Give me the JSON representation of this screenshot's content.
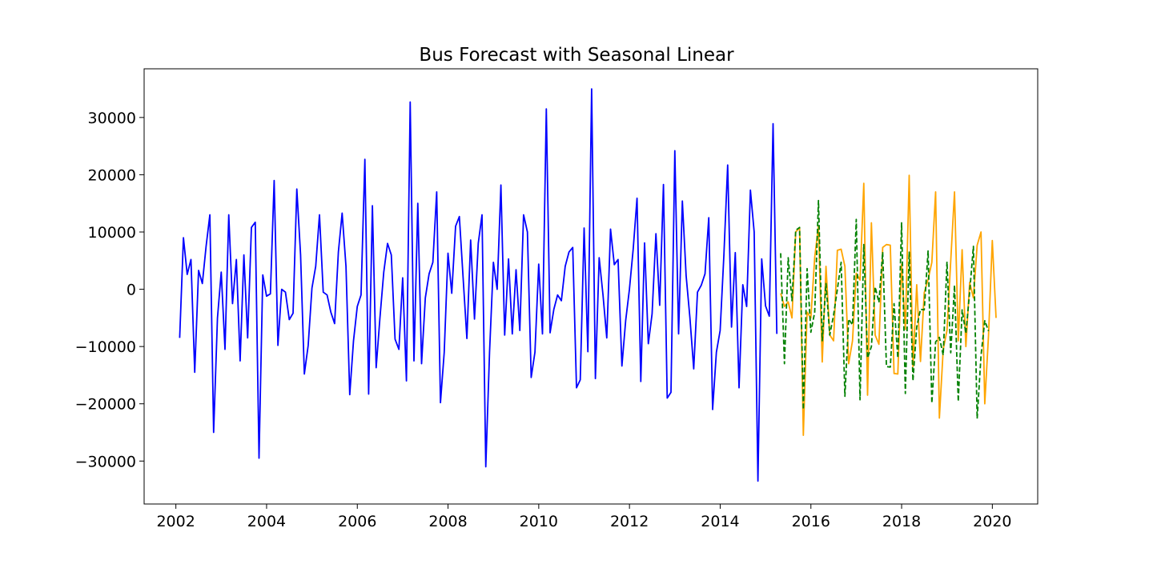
{
  "chart_data": {
    "type": "line",
    "title": "Bus Forecast with Seasonal Linear",
    "xlabel": "",
    "ylabel": "",
    "xlim": [
      2001.3,
      2021.0
    ],
    "ylim": [
      -37500,
      38500
    ],
    "x_ticks": [
      2002,
      2004,
      2006,
      2008,
      2010,
      2012,
      2014,
      2016,
      2018,
      2020
    ],
    "x_tick_labels": [
      "2002",
      "2004",
      "2006",
      "2008",
      "2010",
      "2012",
      "2014",
      "2016",
      "2018",
      "2020"
    ],
    "y_ticks": [
      -30000,
      -20000,
      -10000,
      0,
      10000,
      20000,
      30000
    ],
    "y_tick_labels": [
      "−30000",
      "−20000",
      "−10000",
      "0",
      "10000",
      "20000",
      "30000"
    ],
    "grid": false,
    "legend": "none",
    "series": [
      {
        "role": "history",
        "color": "#0000ff",
        "style": "solid",
        "x_start": 2002.083,
        "x_step": 0.08333,
        "values": [
          -8500,
          9000,
          2600,
          5200,
          -14500,
          3300,
          1000,
          7500,
          13000,
          -25000,
          -5000,
          3000,
          -10500,
          13000,
          -2500,
          5200,
          -12500,
          6000,
          -8500,
          10800,
          11700,
          -29500,
          2500,
          -1200,
          -800,
          19000,
          -9800,
          0,
          -500,
          -5300,
          -4200,
          17500,
          6000,
          -14800,
          -9800,
          200,
          4000,
          13000,
          -500,
          -1000,
          -4000,
          -6000,
          6500,
          13300,
          4000,
          -18400,
          -9000,
          -3000,
          -1000,
          22700,
          -18300,
          14600,
          -13700,
          -5000,
          3000,
          8000,
          6000,
          -8700,
          -10500,
          2000,
          -16000,
          32700,
          -12500,
          15000,
          -13000,
          -1500,
          2700,
          4700,
          17000,
          -19800,
          -11000,
          6300,
          -700,
          11000,
          12700,
          2000,
          -8600,
          8600,
          -5200,
          8000,
          13000,
          -31000,
          -11000,
          4700,
          0,
          18200,
          -8000,
          5300,
          -7800,
          3400,
          -7200,
          13000,
          10000,
          -15400,
          -11000,
          4400,
          -7800,
          31500,
          -7600,
          -3500,
          -1000,
          -2000,
          4000,
          6500,
          7300,
          -17200,
          -15800,
          10700,
          -10900,
          35000,
          -15600,
          5500,
          -1000,
          -8500,
          10500,
          4300,
          5200,
          -13400,
          -5500,
          0,
          7000,
          15900,
          -16100,
          8100,
          -9500,
          -4300,
          9700,
          -2800,
          18300,
          -19000,
          -18000,
          24200,
          -7800,
          15400,
          2400,
          -4900,
          -13900,
          -500,
          700,
          2700,
          12500,
          -21000,
          -11000,
          -7200,
          6000,
          21700,
          -6600,
          6400,
          -17200,
          800,
          -3000,
          17300,
          10000,
          -33500,
          5300,
          -2900,
          -4700,
          28900,
          -7800
        ]
      },
      {
        "role": "actual",
        "color": "#ffa500",
        "style": "solid",
        "x_start": 2015.333,
        "x_step": 0.08333,
        "values": [
          -700,
          -3000,
          -2200,
          -5000,
          10000,
          10800,
          -25500,
          -4000,
          -5000,
          5600,
          11000,
          -12700,
          4000,
          -8000,
          -9000,
          6800,
          7000,
          4000,
          -13000,
          -9000,
          2800,
          1600,
          18500,
          -18500,
          11600,
          -8000,
          -9600,
          7300,
          7800,
          7700,
          -14700,
          -14800,
          4400,
          -7000,
          19900,
          -13500,
          800,
          -12600,
          -600,
          1700,
          4700,
          17000,
          -22500,
          -10500,
          -7200,
          5000,
          17000,
          -9000,
          6900,
          -10000,
          1200,
          -1500,
          7700,
          10000,
          -20000,
          -8000,
          8500,
          -5000
        ]
      },
      {
        "role": "forecast",
        "color": "#008000",
        "style": "dashed",
        "x_start": 2015.333,
        "x_step": 0.08333,
        "values": [
          6300,
          -13000,
          5500,
          -2000,
          10300,
          10800,
          -21000,
          3600,
          -7500,
          -4000,
          15500,
          -9000,
          1000,
          -8000,
          -4500,
          0,
          4700,
          -18700,
          -5200,
          -6200,
          12200,
          -19300,
          7800,
          -12000,
          -10000,
          400,
          -2300,
          6500,
          -13500,
          -13600,
          -2500,
          -12000,
          11600,
          -18200,
          6500,
          -16000,
          -6600,
          -3500,
          -3600,
          6700,
          -19900,
          -9200,
          -8400,
          -11500,
          4800,
          -11100,
          700,
          -19600,
          -3600,
          -7700,
          -500,
          7500,
          -22600,
          -11600,
          -5500,
          -7300
        ]
      }
    ]
  }
}
